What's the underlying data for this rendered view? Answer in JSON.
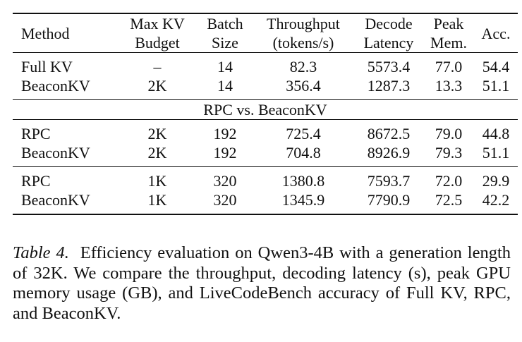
{
  "table": {
    "headers": [
      {
        "line1": "Method",
        "line2": ""
      },
      {
        "line1": "Max KV",
        "line2": "Budget"
      },
      {
        "line1": "Batch",
        "line2": "Size"
      },
      {
        "line1": "Throughput",
        "line2": "(tokens/s)"
      },
      {
        "line1": "Decode",
        "line2": "Latency"
      },
      {
        "line1": "Peak",
        "line2": "Mem."
      },
      {
        "line1": "Acc.",
        "line2": ""
      }
    ],
    "group1": [
      [
        "Full KV",
        "–",
        "14",
        "82.3",
        "5573.4",
        "77.0",
        "54.4"
      ],
      [
        "BeaconKV",
        "2K",
        "14",
        "356.4",
        "1287.3",
        "13.3",
        "51.1"
      ]
    ],
    "section_label": "RPC vs. BeaconKV",
    "group2": [
      [
        "RPC",
        "2K",
        "192",
        "725.4",
        "8672.5",
        "79.0",
        "44.8"
      ],
      [
        "BeaconKV",
        "2K",
        "192",
        "704.8",
        "8926.9",
        "79.3",
        "51.1"
      ]
    ],
    "group3": [
      [
        "RPC",
        "1K",
        "320",
        "1380.8",
        "7593.7",
        "72.0",
        "29.9"
      ],
      [
        "BeaconKV",
        "1K",
        "320",
        "1345.9",
        "7790.9",
        "72.5",
        "42.2"
      ]
    ]
  },
  "caption": {
    "label": "Table 4.",
    "text": "Efficiency evaluation on Qwen3-4B with a generation length of 32K. We compare the throughput, decoding latency (s), peak GPU memory usage (GB), and LiveCodeBench accuracy of Full KV, RPC, and BeaconKV."
  }
}
